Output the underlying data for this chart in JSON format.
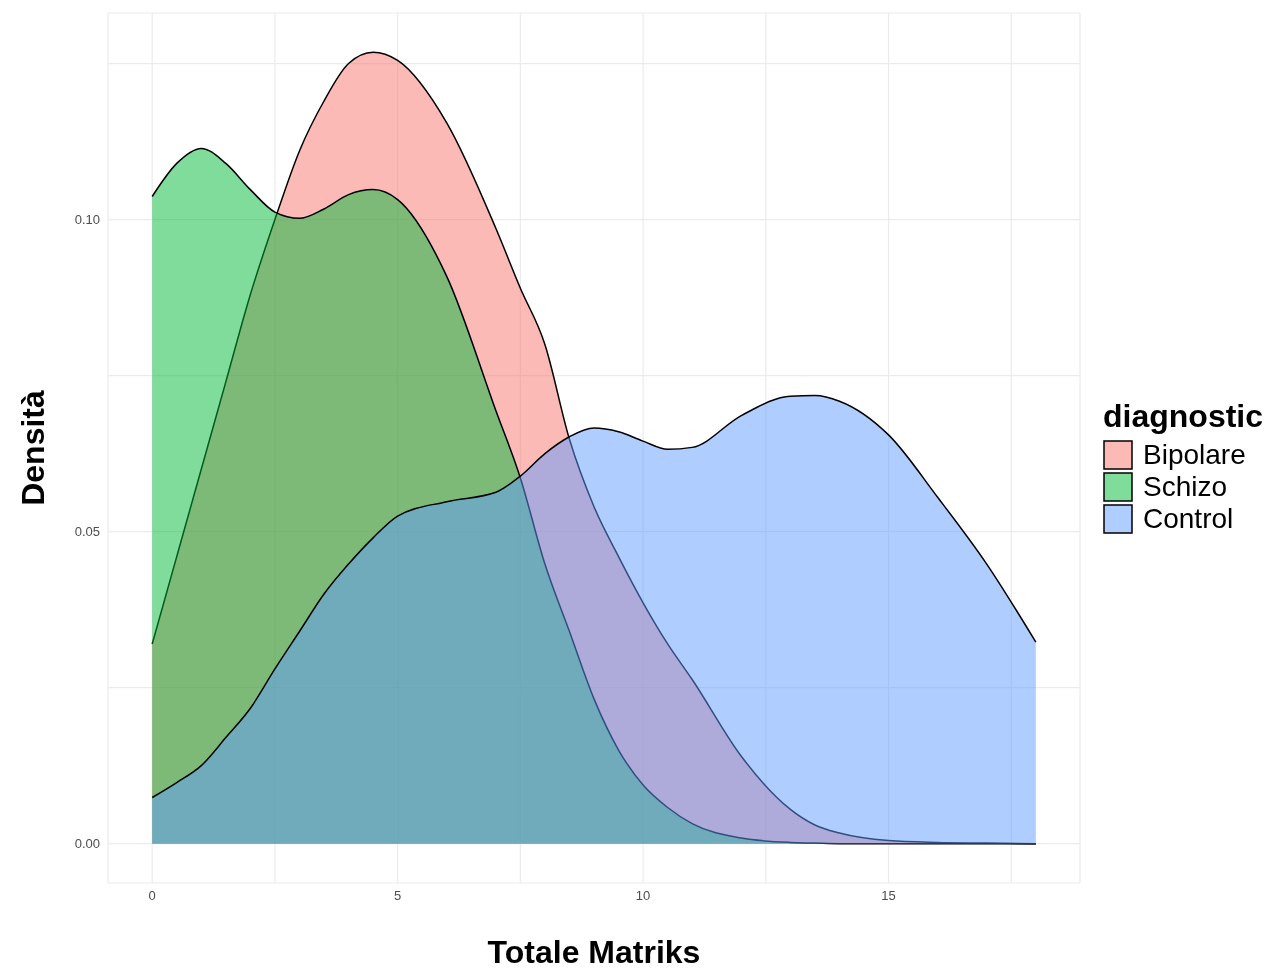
{
  "chart_data": {
    "type": "area",
    "xlabel": "Totale Matriks",
    "ylabel": "Densità",
    "legend_title": "diagnostic",
    "legend": "right",
    "grid": true,
    "xlim": [
      -0.9,
      18.9
    ],
    "xticks": [
      0,
      {
        "value": 2.5,
        "label": null
      },
      5,
      {
        "value": 7.5,
        "label": null
      },
      10,
      {
        "value": 12.5,
        "label": null
      },
      15,
      {
        "value": 17.5,
        "label": null
      }
    ],
    "ylim": [
      -0.0063,
      0.1331
    ],
    "yticks": [
      {
        "value": 0,
        "label": "0.00"
      },
      {
        "value": 0.025,
        "label": null
      },
      {
        "value": 0.05,
        "label": "0.05"
      },
      {
        "value": 0.075,
        "label": null
      },
      {
        "value": 0.1,
        "label": "0.10"
      },
      {
        "value": 0.125,
        "label": null
      }
    ],
    "x": [
      0,
      0.5,
      1,
      1.5,
      2,
      2.5,
      3,
      3.5,
      4,
      4.5,
      5,
      6,
      7,
      7.5,
      8,
      8.5,
      9,
      9.5,
      10,
      10.5,
      11,
      12,
      13,
      13.5,
      14,
      15,
      16,
      17,
      18
    ],
    "series": [
      {
        "name": "Bipolare",
        "color": "#f8766d",
        "values": [
          0.032,
          0.046,
          0.06,
          0.074,
          0.088,
          0.1,
          0.111,
          0.119,
          0.125,
          0.1268,
          0.1255,
          0.1155,
          0.0986,
          0.089,
          0.08,
          0.0648,
          0.054,
          0.046,
          0.0386,
          0.032,
          0.0263,
          0.014,
          0.0055,
          0.003,
          0.0017,
          0.0005,
          0.0002,
          0.0001,
          0
        ]
      },
      {
        "name": "Schizo",
        "color": "#00ba38",
        "values": [
          0.1037,
          0.109,
          0.1114,
          0.109,
          0.1048,
          0.1012,
          0.1002,
          0.1017,
          0.104,
          0.1048,
          0.1032,
          0.0909,
          0.0694,
          0.0586,
          0.0448,
          0.034,
          0.0232,
          0.015,
          0.0094,
          0.0058,
          0.0032,
          0.0009,
          0.0002,
          0.0001,
          0,
          0,
          0,
          0,
          0
        ]
      },
      {
        "name": "Control",
        "color": "#619cff",
        "values": [
          0.0074,
          0.0098,
          0.0125,
          0.017,
          0.0217,
          0.028,
          0.034,
          0.04,
          0.0448,
          0.049,
          0.0525,
          0.0548,
          0.0563,
          0.0589,
          0.0625,
          0.0652,
          0.0666,
          0.066,
          0.0645,
          0.0632,
          0.0635,
          0.0686,
          0.0717,
          0.0718,
          0.0709,
          0.0655,
          0.0555,
          0.0448,
          0.0323
        ]
      }
    ]
  }
}
